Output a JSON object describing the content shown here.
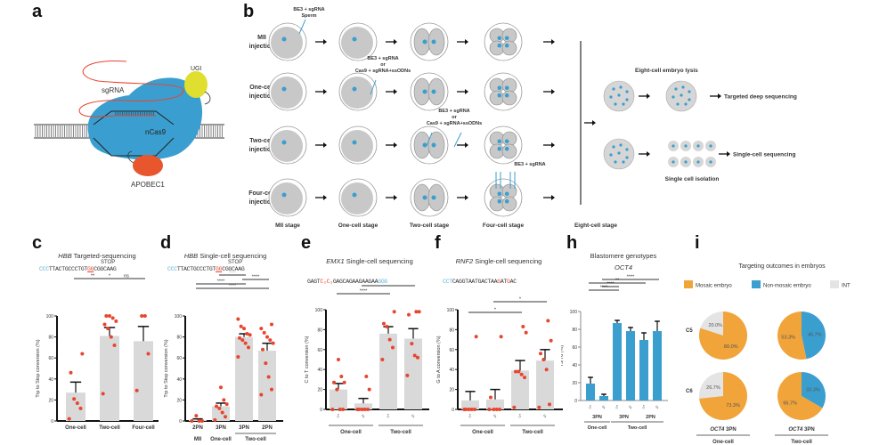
{
  "panels": {
    "a": {
      "label": "a",
      "components": {
        "sgrna": "sgRNA",
        "ugi": "UGI",
        "ncas9": "nCas9",
        "apobec": "APOBEC1"
      }
    },
    "b": {
      "label": "b",
      "rows": [
        {
          "label1": "MII",
          "label2": "injection",
          "note": [
            "BE3 + sgRNA",
            "Sperm"
          ]
        },
        {
          "label1": "One-cell",
          "label2": "injection",
          "note": [
            "BE3 + sgRNA",
            "or",
            "Cas9 + sgRNA+ssODNs"
          ]
        },
        {
          "label1": "Two-cell",
          "label2": "injection",
          "note": [
            "BE3 + sgRNA",
            "or",
            "Cas9 + sgRNA+ssODNs"
          ]
        },
        {
          "label1": "Four-cell",
          "label2": "injection",
          "note": [
            "BE3 + sgRNA"
          ]
        }
      ],
      "stages": [
        "MII stage",
        "One-cell stage",
        "Two-cell stage",
        "Four-cell stage",
        "Eight-cell stage"
      ],
      "lysis_label": "Eight-cell embryo lysis",
      "deep_seq_label": "Targeted deep sequencing",
      "isolation_label": "Single cell isolation",
      "single_cell_label": "Single-cell sequencing"
    },
    "c": {
      "label": "c"
    },
    "d": {
      "label": "d"
    },
    "e": {
      "label": "e"
    },
    "f": {
      "label": "f"
    },
    "h": {
      "label": "h"
    },
    "i": {
      "label": "i"
    }
  },
  "colors": {
    "bar_gray": "#d9d9d9",
    "dot_red": "#e8452e",
    "blue": "#3a9fcf",
    "orange": "#f0a43a",
    "light_gray": "#e4e4e4",
    "cyan_text": "#5ab4d6",
    "cas9_blue": "#3a9fd0",
    "ugi_yellow": "#e0de2e",
    "apobec_red": "#e8562e"
  },
  "chart_data": [
    {
      "id": "c",
      "type": "bar",
      "title": "HBB Targeted-sequencing",
      "title_italic": "HBB",
      "title_rest": " Targeted-sequencing",
      "seq_pam": "CCC",
      "seq_mid": "TTACTGCCCTGT",
      "seq_edit": "GG",
      "seq_end": "CGGCAAG",
      "seq_marker": "STOP",
      "ylabel": "Trp to Stop conversion (%)",
      "ylim": [
        0,
        100
      ],
      "yticks": [
        0,
        20,
        40,
        60,
        80,
        100
      ],
      "categories": [
        "One-cell",
        "Two-cell",
        "Four-cell"
      ],
      "values": [
        27,
        81,
        76
      ],
      "errors": [
        10,
        8,
        14
      ],
      "points": [
        [
          2,
          12,
          17,
          21,
          46,
          64
        ],
        [
          26,
          72,
          80,
          88,
          92,
          95,
          98,
          100,
          100
        ],
        [
          29,
          64,
          100,
          100
        ]
      ],
      "significance": [
        {
          "from": 0,
          "to": 1,
          "label": "**"
        },
        {
          "from": 1,
          "to": 2,
          "label": "ns"
        },
        {
          "from": 0,
          "to": 2,
          "label": "*"
        }
      ]
    },
    {
      "id": "d",
      "type": "bar",
      "title": "HBB Single-cell sequencing",
      "title_italic": "HBB",
      "title_rest": " Single-cell sequencing",
      "seq_pam": "CCC",
      "seq_mid": "TTACTGCCCTGT",
      "seq_edit": "GG",
      "seq_end": "CGGCAAG",
      "seq_marker": "STOP",
      "ylabel": "Trp to Stop conversion (%)",
      "ylim": [
        0,
        100
      ],
      "yticks": [
        0,
        20,
        40,
        60,
        80,
        100
      ],
      "categories": [
        "2PN",
        "3PN",
        "3PN",
        "2PN"
      ],
      "groups": [
        {
          "label": "MII",
          "span": [
            0,
            0
          ]
        },
        {
          "label": "One-cell",
          "span": [
            1,
            1
          ]
        },
        {
          "label": "Two-cell",
          "span": [
            2,
            3
          ]
        }
      ],
      "values": [
        1,
        14,
        80,
        67
      ],
      "errors": [
        1,
        3,
        3,
        7
      ],
      "points": [
        [
          0,
          0,
          0,
          5
        ],
        [
          1,
          4,
          8,
          12,
          14,
          16,
          20,
          32
        ],
        [
          61,
          70,
          74,
          77,
          79,
          82,
          83,
          88,
          90,
          97
        ],
        [
          25,
          30,
          42,
          55,
          68,
          74,
          77,
          80,
          84,
          88,
          92
        ]
      ],
      "significance": [
        {
          "from": 1,
          "to": 2,
          "label": "****"
        },
        {
          "from": 2,
          "to": 3,
          "label": "****"
        },
        {
          "from": 0,
          "to": 2,
          "label": "****"
        },
        {
          "from": 0,
          "to": 3,
          "label": "****"
        }
      ]
    },
    {
      "id": "e",
      "type": "bar",
      "title": "EMX1 Single-cell sequencing",
      "title_italic": "EMX1",
      "title_rest": " Single-cell sequencing",
      "seq_pre": "GAGT",
      "seq_edit": "C₂C₃",
      "seq_end": "GAGCAGAAGAAGAA",
      "seq_pam": "GGG",
      "ylabel": "C to T conversion (%)",
      "ylim": [
        0,
        100
      ],
      "yticks": [
        0,
        20,
        40,
        60,
        80,
        100
      ],
      "categories": [
        "♂",
        "♀",
        "♂",
        "♀"
      ],
      "groups": [
        {
          "label": "One-cell",
          "span": [
            0,
            1
          ]
        },
        {
          "label": "Two-cell",
          "span": [
            2,
            3
          ]
        }
      ],
      "values": [
        20,
        6,
        76,
        71
      ],
      "errors": [
        6,
        5,
        7,
        10
      ],
      "points": [
        [
          0,
          0,
          0,
          20,
          27,
          27,
          33,
          50
        ],
        [
          0,
          0,
          0,
          0,
          0,
          20,
          33
        ],
        [
          50,
          62,
          70,
          83,
          86,
          98
        ],
        [
          34,
          52,
          54,
          66,
          95,
          98,
          98
        ]
      ],
      "significance": [
        {
          "from": 0,
          "to": 2,
          "label": "****"
        },
        {
          "from": 1,
          "to": 3,
          "label": "****"
        }
      ]
    },
    {
      "id": "f",
      "type": "bar",
      "title": "RNF2 Single-cell sequencing",
      "title_italic": "RNF2",
      "title_rest": " Single-cell sequencing",
      "seq_pam": "CCT",
      "seq_mid": "CAGGTAATGACTAA",
      "seq_edit1": "G",
      "seq_mid2": "AT",
      "seq_edit2": "G",
      "seq_end": "AC",
      "ylabel": "G to A conversion (%)",
      "ylim": [
        0,
        100
      ],
      "yticks": [
        0,
        20,
        40,
        60,
        80,
        100
      ],
      "categories": [
        "♂",
        "♀",
        "♂",
        "♀"
      ],
      "groups": [
        {
          "label": "One-cell",
          "span": [
            0,
            1
          ]
        },
        {
          "label": "Two-cell",
          "span": [
            2,
            3
          ]
        }
      ],
      "values": [
        9,
        10,
        39,
        49
      ],
      "errors": [
        9,
        10,
        10,
        11
      ],
      "points": [
        [
          0,
          0,
          0,
          0,
          0,
          73
        ],
        [
          0,
          0,
          0,
          0,
          12,
          73
        ],
        [
          2,
          32,
          35,
          38,
          38,
          77,
          83
        ],
        [
          2,
          5,
          40,
          50,
          56,
          69,
          89
        ]
      ],
      "significance": [
        {
          "from": 0,
          "to": 2,
          "label": "*"
        },
        {
          "from": 1,
          "to": 3,
          "label": "*"
        }
      ]
    },
    {
      "id": "h",
      "type": "bar",
      "title": "Blastomere genotypes",
      "subtitle": "OCT4",
      "ylabel": "T5/T6 (%)",
      "ylim": [
        0,
        100
      ],
      "yticks": [
        0,
        20,
        40,
        60,
        80,
        100
      ],
      "categories": [
        "♂",
        "♀",
        "♂",
        "♀",
        "♂",
        "♀"
      ],
      "subgroups": [
        {
          "label": "3PN",
          "span": [
            0,
            1
          ]
        },
        {
          "label": "3PN",
          "span": [
            2,
            3
          ]
        },
        {
          "label": "2PN",
          "span": [
            4,
            5
          ]
        }
      ],
      "groups": [
        {
          "label": "One-cell",
          "span": [
            0,
            1
          ]
        },
        {
          "label": "Two-cell",
          "span": [
            2,
            5
          ]
        }
      ],
      "values": [
        19,
        5,
        87,
        78,
        68,
        78
      ],
      "errors": [
        7,
        2,
        3,
        4,
        8,
        11
      ],
      "significance": [
        {
          "from": 0,
          "to": 2,
          "label": "****"
        },
        {
          "from": 1,
          "to": 2,
          "label": "****"
        },
        {
          "from": 0,
          "to": 4,
          "label": "**"
        },
        {
          "from": 1,
          "to": 5,
          "label": "****"
        }
      ]
    },
    {
      "id": "i",
      "type": "pie",
      "title": "Targeting outcomes in embryos",
      "legend": [
        {
          "name": "Mosaic embryo",
          "color": "#f0a43a"
        },
        {
          "name": "Non-mosaic embryo",
          "color": "#3a9fcf"
        },
        {
          "name": "INT",
          "color": "#e4e4e4"
        }
      ],
      "rows": [
        "C5",
        "C6"
      ],
      "columns": [
        {
          "gene": "OCT4",
          "rest": " 3PN",
          "group": "One-cell"
        },
        {
          "gene": "OCT4",
          "rest": " 3PN",
          "group": "Two-cell"
        }
      ],
      "pies": [
        {
          "row": 0,
          "col": 0,
          "slices": [
            {
              "name": "Mosaic embryo",
              "value": 80.0,
              "label": "80.0%"
            },
            {
              "name": "INT",
              "value": 20.0,
              "label": "20.0%"
            }
          ]
        },
        {
          "row": 0,
          "col": 1,
          "slices": [
            {
              "name": "Mosaic embryo",
              "value": 53.3,
              "label": "53.3%"
            },
            {
              "name": "Non-mosaic embryo",
              "value": 46.7,
              "label": "46.7%"
            }
          ]
        },
        {
          "row": 1,
          "col": 0,
          "slices": [
            {
              "name": "Mosaic embryo",
              "value": 73.3,
              "label": "73.3%"
            },
            {
              "name": "INT",
              "value": 26.7,
              "label": "26.7%"
            }
          ]
        },
        {
          "row": 1,
          "col": 1,
          "slices": [
            {
              "name": "Mosaic embryo",
              "value": 66.7,
              "label": "66.7%"
            },
            {
              "name": "Non-mosaic embryo",
              "value": 33.3,
              "label": "33.3%"
            }
          ]
        }
      ]
    }
  ]
}
